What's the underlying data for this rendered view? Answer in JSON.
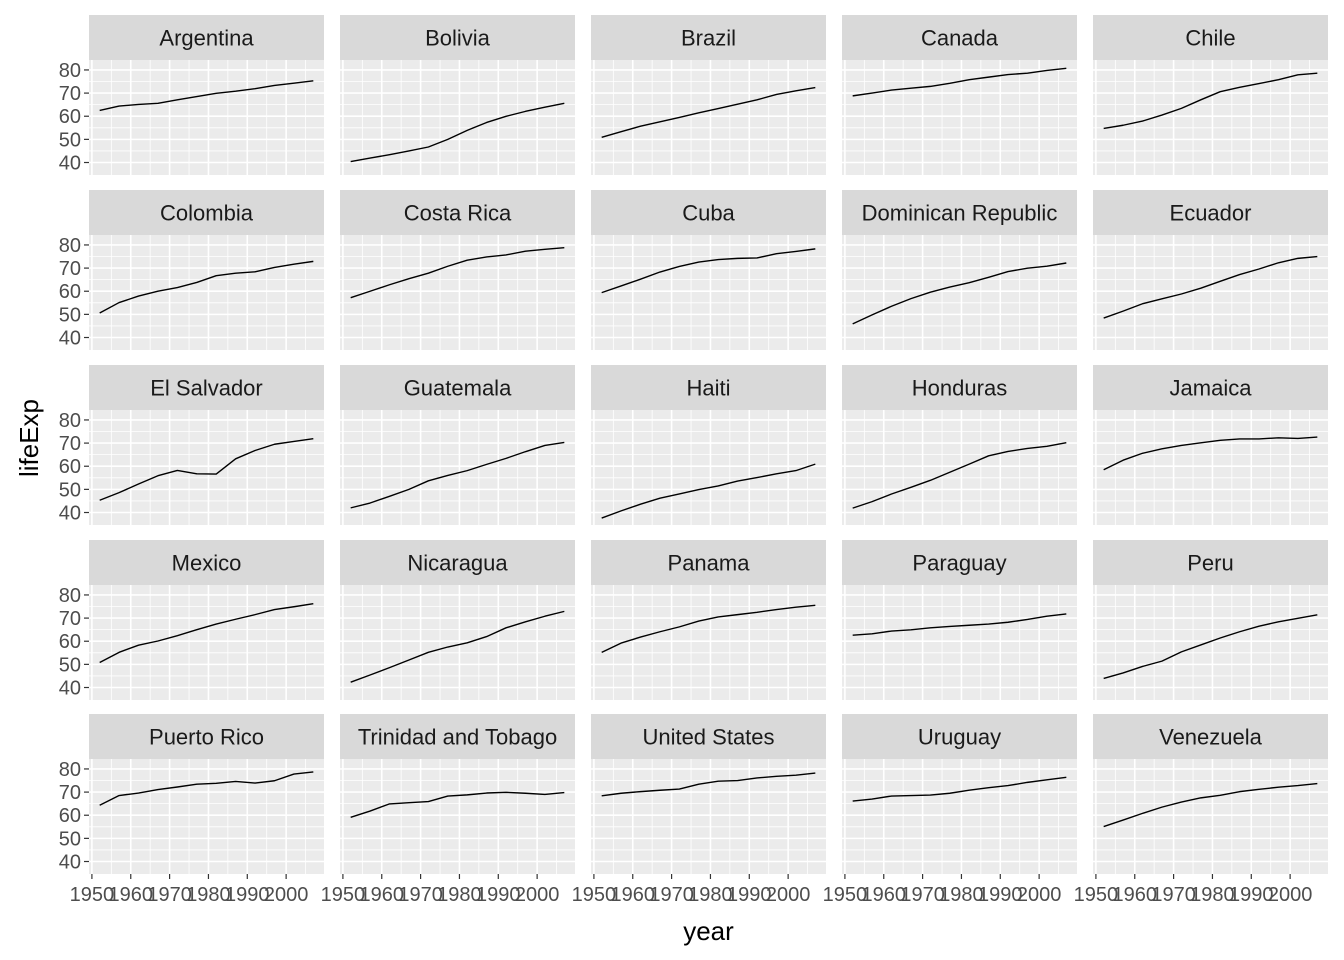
{
  "chart_data": {
    "type": "line",
    "xlabel": "year",
    "ylabel": "lifeExp",
    "x": [
      1952,
      1957,
      1962,
      1967,
      1972,
      1977,
      1982,
      1987,
      1992,
      1997,
      2002,
      2007
    ],
    "xlim": [
      1949.25,
      2009.75
    ],
    "ylim": [
      34.6,
      84.3
    ],
    "x_ticks": [
      1950,
      1960,
      1970,
      1980,
      1990,
      2000
    ],
    "x_tick_labels": [
      "1950",
      "1960",
      "1970",
      "1980",
      "1990",
      "2000"
    ],
    "y_ticks": [
      40,
      50,
      60,
      70,
      80
    ],
    "y_tick_labels": [
      "40",
      "50",
      "60",
      "70",
      "80"
    ],
    "grid": true,
    "facets": {
      "rows": 5,
      "cols": 5
    },
    "colors": {
      "panel_bg": "#EBEBEB",
      "strip_bg": "#D9D9D9",
      "grid": "#FFFFFF",
      "line": "#000000"
    },
    "series": [
      {
        "name": "Argentina",
        "values": [
          62.5,
          64.4,
          65.1,
          65.6,
          67.1,
          68.5,
          69.9,
          70.8,
          71.9,
          73.3,
          74.3,
          75.3
        ]
      },
      {
        "name": "Bolivia",
        "values": [
          40.4,
          41.9,
          43.4,
          45.0,
          46.7,
          50.0,
          53.9,
          57.3,
          59.96,
          62.1,
          63.9,
          65.6
        ]
      },
      {
        "name": "Brazil",
        "values": [
          50.9,
          53.3,
          55.7,
          57.6,
          59.5,
          61.5,
          63.3,
          65.2,
          67.1,
          69.4,
          71.0,
          72.4
        ]
      },
      {
        "name": "Canada",
        "values": [
          68.8,
          70.0,
          71.3,
          72.1,
          72.9,
          74.2,
          75.8,
          76.9,
          78.0,
          78.6,
          79.8,
          80.7
        ]
      },
      {
        "name": "Chile",
        "values": [
          54.7,
          56.1,
          57.9,
          60.5,
          63.4,
          67.1,
          70.6,
          72.5,
          74.1,
          75.8,
          77.9,
          78.6
        ]
      },
      {
        "name": "Colombia",
        "values": [
          50.6,
          55.1,
          57.9,
          60.0,
          61.6,
          63.8,
          66.7,
          67.8,
          68.4,
          70.3,
          71.7,
          72.9
        ]
      },
      {
        "name": "Costa Rica",
        "values": [
          57.2,
          60.0,
          62.8,
          65.4,
          67.8,
          70.8,
          73.4,
          74.8,
          75.7,
          77.3,
          78.1,
          78.8
        ]
      },
      {
        "name": "Cuba",
        "values": [
          59.4,
          62.3,
          65.2,
          68.3,
          70.7,
          72.6,
          73.7,
          74.2,
          74.4,
          76.2,
          77.2,
          78.3
        ]
      },
      {
        "name": "Dominican Republic",
        "values": [
          45.9,
          49.8,
          53.5,
          56.8,
          59.6,
          61.8,
          63.7,
          66.0,
          68.5,
          69.96,
          70.8,
          72.2
        ]
      },
      {
        "name": "Ecuador",
        "values": [
          48.4,
          51.4,
          54.6,
          56.7,
          58.8,
          61.3,
          64.3,
          67.2,
          69.6,
          72.3,
          74.2,
          75.0
        ]
      },
      {
        "name": "El Salvador",
        "values": [
          45.3,
          48.6,
          52.3,
          55.9,
          58.2,
          56.7,
          56.6,
          63.2,
          66.8,
          69.5,
          70.7,
          71.9
        ]
      },
      {
        "name": "Guatemala",
        "values": [
          42.0,
          44.1,
          47.0,
          50.0,
          53.7,
          56.0,
          58.1,
          60.8,
          63.4,
          66.3,
          68.98,
          70.3
        ]
      },
      {
        "name": "Haiti",
        "values": [
          37.6,
          40.7,
          43.6,
          46.2,
          48.0,
          49.9,
          51.5,
          53.6,
          55.1,
          56.7,
          58.1,
          60.9
        ]
      },
      {
        "name": "Honduras",
        "values": [
          41.9,
          44.7,
          48.0,
          50.9,
          53.9,
          57.4,
          60.9,
          64.5,
          66.4,
          67.7,
          68.6,
          70.2
        ]
      },
      {
        "name": "Jamaica",
        "values": [
          58.5,
          62.6,
          65.6,
          67.5,
          69.0,
          70.1,
          71.2,
          71.8,
          71.8,
          72.3,
          72.0,
          72.6
        ]
      },
      {
        "name": "Mexico",
        "values": [
          50.8,
          55.2,
          58.3,
          60.1,
          62.4,
          65.0,
          67.4,
          69.5,
          71.5,
          73.7,
          74.9,
          76.2
        ]
      },
      {
        "name": "Nicaragua",
        "values": [
          42.3,
          45.4,
          48.6,
          51.9,
          55.2,
          57.5,
          59.3,
          62.0,
          65.8,
          68.4,
          70.8,
          72.9
        ]
      },
      {
        "name": "Panama",
        "values": [
          55.2,
          59.2,
          61.8,
          64.1,
          66.2,
          68.7,
          70.5,
          71.5,
          72.5,
          73.7,
          74.7,
          75.5
        ]
      },
      {
        "name": "Paraguay",
        "values": [
          62.6,
          63.2,
          64.4,
          64.95,
          65.8,
          66.4,
          66.9,
          67.4,
          68.2,
          69.4,
          70.8,
          71.8
        ]
      },
      {
        "name": "Peru",
        "values": [
          43.9,
          46.3,
          49.1,
          51.4,
          55.4,
          58.4,
          61.4,
          64.1,
          66.5,
          68.4,
          69.9,
          71.4
        ]
      },
      {
        "name": "Puerto Rico",
        "values": [
          64.3,
          68.5,
          69.6,
          71.1,
          72.2,
          73.4,
          73.8,
          74.6,
          73.9,
          74.9,
          77.8,
          78.7
        ]
      },
      {
        "name": "Trinidad and Tobago",
        "values": [
          59.1,
          61.8,
          64.9,
          65.4,
          65.9,
          68.3,
          68.8,
          69.6,
          69.9,
          69.5,
          68.98,
          69.8
        ]
      },
      {
        "name": "United States",
        "values": [
          68.4,
          69.5,
          70.2,
          70.8,
          71.3,
          73.4,
          74.7,
          75.0,
          76.1,
          76.8,
          77.3,
          78.2
        ]
      },
      {
        "name": "Uruguay",
        "values": [
          66.1,
          67.0,
          68.3,
          68.5,
          68.7,
          69.5,
          70.8,
          71.9,
          72.8,
          74.2,
          75.3,
          76.4
        ]
      },
      {
        "name": "Venezuela",
        "values": [
          55.1,
          57.9,
          60.8,
          63.5,
          65.7,
          67.5,
          68.6,
          70.2,
          71.2,
          72.1,
          72.8,
          73.7
        ]
      }
    ]
  }
}
